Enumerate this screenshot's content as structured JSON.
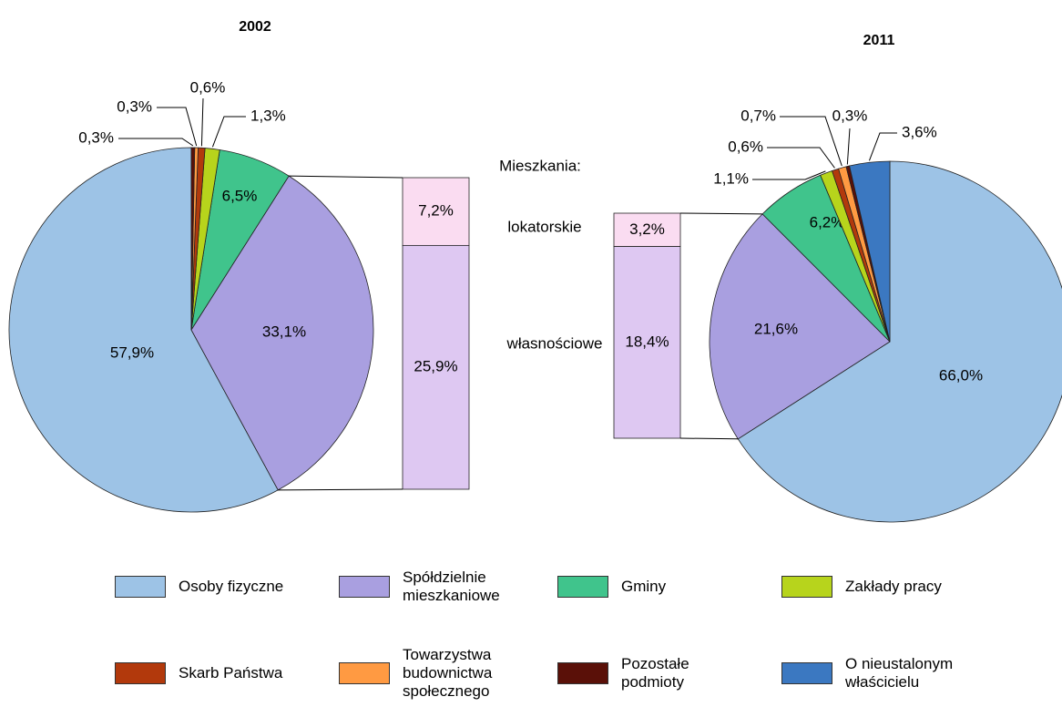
{
  "chart_data": [
    {
      "type": "pie",
      "title": "2002",
      "values": [
        57.9,
        33.1,
        6.5,
        1.3,
        0.6,
        0.3,
        0.3
      ],
      "value_labels": [
        "57,9%",
        "33,1%",
        "6,5%",
        "1,3%",
        "0,6%",
        "0,3%",
        "0,3%"
      ],
      "breakdown": {
        "values": [
          7.2,
          25.9
        ],
        "value_labels": [
          "7,2%",
          "25,9%"
        ]
      }
    },
    {
      "type": "pie",
      "title": "2011",
      "values": [
        66.0,
        21.6,
        6.2,
        1.1,
        0.6,
        0.7,
        0.3,
        3.6
      ],
      "value_labels": [
        "66,0%",
        "21,6%",
        "6,2%",
        "1,1%",
        "0,6%",
        "0,7%",
        "0,3%",
        "3,6%"
      ],
      "breakdown": {
        "values": [
          3.2,
          18.4
        ],
        "value_labels": [
          "3,2%",
          "18,4%"
        ]
      }
    }
  ],
  "legend": {
    "categories": [
      "Osoby fizyczne",
      "Spółdzielnie mieszkaniowe",
      "Gminy",
      "Zakłady pracy",
      "Skarb Państwa",
      "Towarzystwa budownictwa społecznego",
      "Pozostałe podmioty",
      "O nieustalonym właścicielu"
    ],
    "colors": [
      "#9dc3e6",
      "#a99fe0",
      "#40c48c",
      "#b7d41c",
      "#b2390c",
      "#ff9a42",
      "#5a1008",
      "#3b78c1"
    ]
  },
  "breakdown": {
    "title": "Mieszkania:",
    "categories": [
      "lokatorskie",
      "własnościowe"
    ],
    "colors": [
      "#fadcf1",
      "#dec8f2"
    ]
  }
}
